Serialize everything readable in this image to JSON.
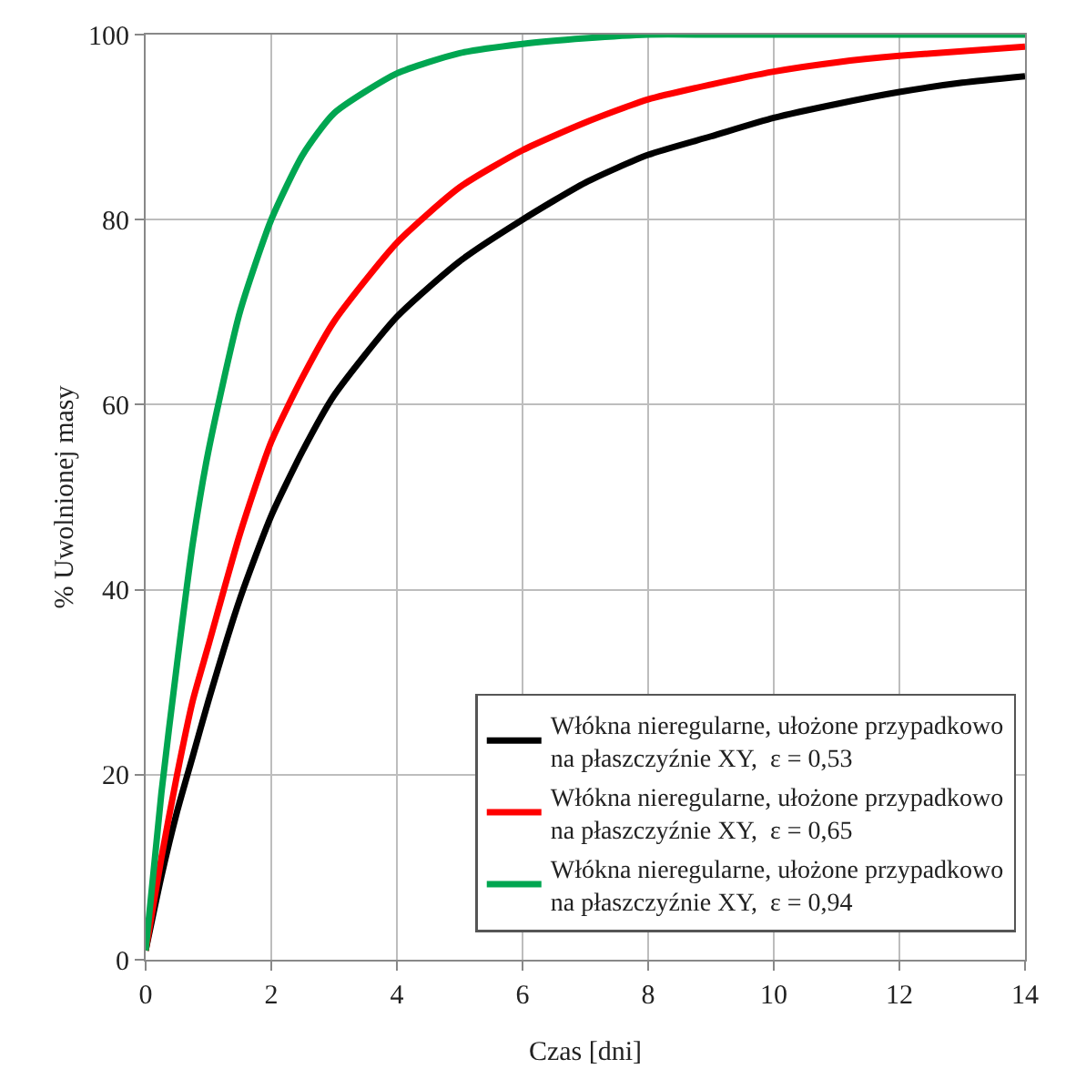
{
  "chart_data": {
    "type": "line",
    "xlabel": "Czas [dni]",
    "ylabel": "% Uwolnionej masy",
    "x": [
      0,
      0.25,
      0.5,
      0.75,
      1,
      1.5,
      2,
      2.5,
      3,
      4,
      5,
      6,
      7,
      8,
      9,
      10,
      11,
      12,
      13,
      14
    ],
    "series": [
      {
        "name": "Włókna nieregularne, ułożone przypadkowo na płaszczyźnie XY,  ε = 0,53",
        "color": "#000000",
        "values": [
          1,
          9,
          16,
          22,
          28,
          39,
          48,
          55,
          61,
          69.5,
          75.5,
          80,
          84,
          87,
          89,
          91,
          92.5,
          93.8,
          94.8,
          95.5
        ]
      },
      {
        "name": "Włókna nieregularne, ułożone przypadkowo na płaszczyźnie XY,  ε = 0,65",
        "color": "#ff0000",
        "values": [
          1,
          11,
          20,
          28,
          34,
          46,
          56,
          63,
          69,
          77.5,
          83.5,
          87.5,
          90.5,
          93,
          94.6,
          96,
          97,
          97.7,
          98.2,
          98.7
        ]
      },
      {
        "name": "Włókna nieregularne, ułożone przypadkowo na płaszczyźnie XY,  ε = 0,94",
        "color": "#00a651",
        "values": [
          1,
          18,
          32,
          45,
          55,
          70,
          80,
          87,
          91.5,
          95.8,
          98,
          99,
          99.6,
          100,
          100,
          100,
          100,
          100,
          100,
          100
        ]
      }
    ],
    "xlim": [
      0,
      14
    ],
    "xticks": [
      0,
      2,
      4,
      6,
      8,
      10,
      12,
      14
    ],
    "ylim": [
      0,
      100
    ],
    "yticks": [
      0,
      20,
      40,
      60,
      80,
      100
    ],
    "grid": true,
    "legend": "bottom right",
    "marker": "none",
    "line_style": "solid"
  }
}
